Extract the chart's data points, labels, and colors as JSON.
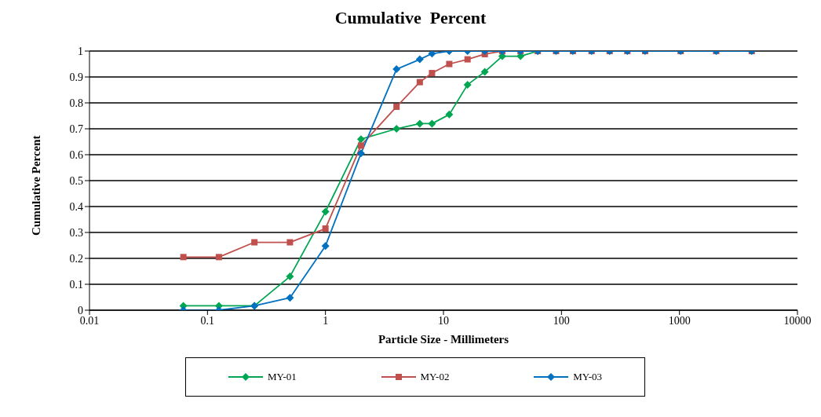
{
  "chart_data": {
    "type": "line",
    "title": "Cumulative  Percent",
    "xlabel": "Particle Size - Millimeters",
    "ylabel": "Cumulative Percent",
    "x": [
      0.0625,
      0.125,
      0.25,
      0.5,
      1,
      2,
      4,
      6.3,
      8,
      11.2,
      16,
      22.4,
      31.5,
      45,
      63,
      90,
      125,
      180,
      256,
      362,
      512,
      1024,
      2048,
      4096
    ],
    "series": [
      {
        "name": "MY-01",
        "color": "#00a651",
        "marker": "diamond",
        "values": [
          0.017,
          0.017,
          0.017,
          0.13,
          0.38,
          0.66,
          0.7,
          0.72,
          0.72,
          0.755,
          0.87,
          0.92,
          0.98,
          0.98,
          1,
          null,
          null,
          null,
          null,
          null,
          null,
          null,
          null,
          null
        ]
      },
      {
        "name": "MY-02",
        "color": "#c0504d",
        "marker": "square",
        "values": [
          0.205,
          0.205,
          0.262,
          0.262,
          0.315,
          0.635,
          0.785,
          0.88,
          0.915,
          0.95,
          0.968,
          0.988,
          1,
          1,
          1,
          1,
          1,
          1,
          1,
          1,
          1,
          1,
          1,
          1
        ]
      },
      {
        "name": "MY-03",
        "color": "#0070c0",
        "marker": "diamond",
        "values": [
          0,
          0,
          0.017,
          0.048,
          0.248,
          0.605,
          0.93,
          0.968,
          0.99,
          1,
          1,
          1,
          1,
          1,
          1,
          1,
          1,
          1,
          1,
          1,
          1,
          1,
          1,
          1
        ]
      }
    ],
    "log": "x",
    "xlim": [
      0.01,
      10000
    ],
    "xticks": [
      0.01,
      0.1,
      1,
      10,
      100,
      1000,
      10000
    ],
    "ylim": [
      0,
      1
    ],
    "yticks": [
      0,
      0.1,
      0.2,
      0.3,
      0.4,
      0.5,
      0.6,
      0.7,
      0.8,
      0.9,
      1
    ],
    "grid": "y",
    "legend": "bottom",
    "line_style": "solid"
  }
}
